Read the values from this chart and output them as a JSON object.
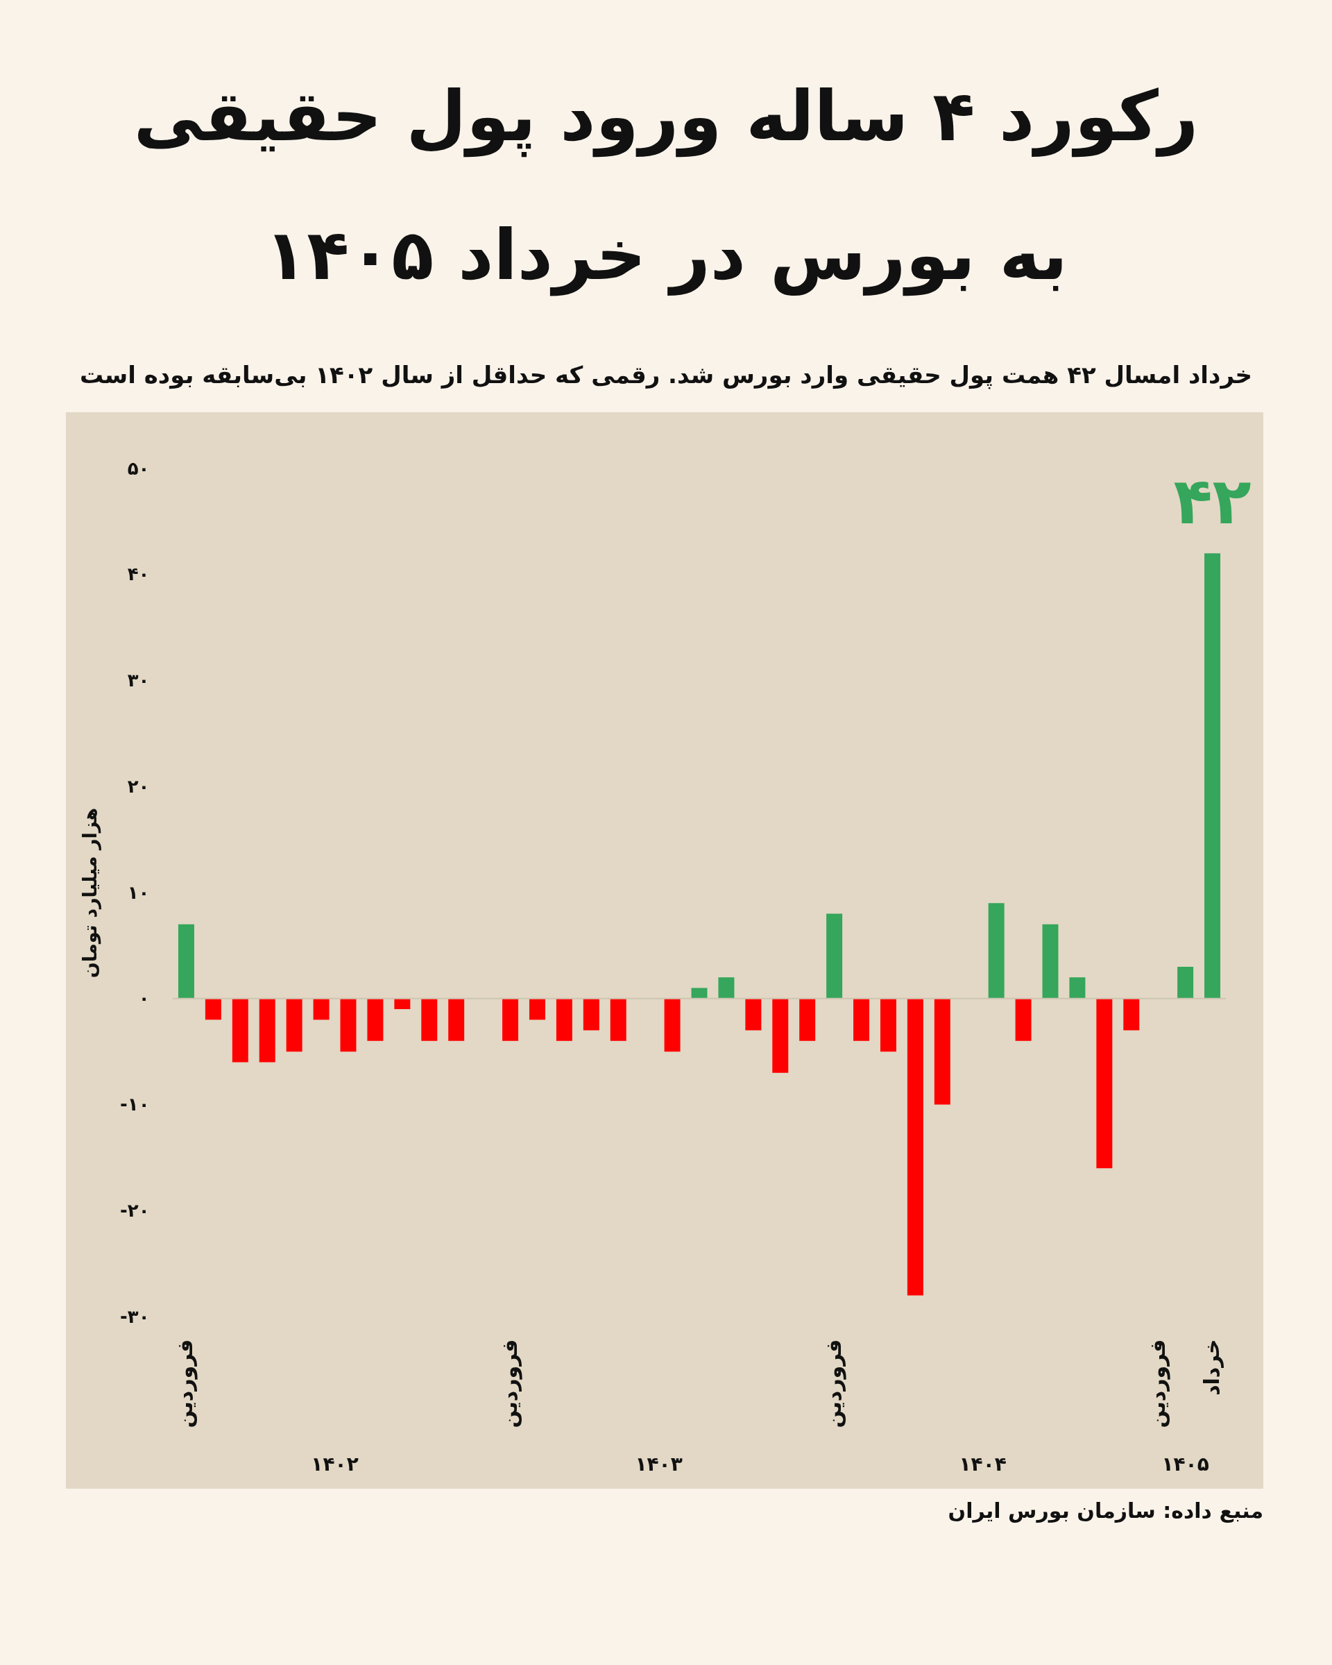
{
  "chart_data": {
    "type": "bar",
    "title": "رکورد ۴ ساله ورود پول حقیقی به بورس در خرداد ۱۴۰۵",
    "subtitle": "خرداد امسال ۴۲ همت پول حقیقی وارد بورس شد. رقمی که حداقل از سال ۱۴۰۲ بی‌سابقه بوده است",
    "ylabel": "هزار میلیارد تومان",
    "categories": [
      "فروردین",
      null,
      null,
      null,
      null,
      null,
      null,
      null,
      null,
      null,
      null,
      null,
      "فروردین",
      null,
      null,
      null,
      null,
      null,
      null,
      null,
      null,
      null,
      null,
      null,
      "فروردین",
      null,
      null,
      null,
      null,
      null,
      null,
      null,
      null,
      null,
      null,
      null,
      "فروردین",
      null,
      "خرداد"
    ],
    "values": [
      7,
      -2,
      -6,
      -6,
      -5,
      -2,
      -5,
      -4,
      -1,
      -4,
      -4,
      null,
      -4,
      -2,
      -4,
      -3,
      -4,
      null,
      -5,
      1,
      2,
      -3,
      -7,
      -4,
      8,
      -4,
      -5,
      -28,
      -10,
      null,
      9,
      -4,
      7,
      2,
      -16,
      -3,
      null,
      3,
      42
    ],
    "colors": [
      "#35a65b",
      "#ff0000",
      "#ff0000",
      "#ff0000",
      "#ff0000",
      "#ff0000",
      "#ff0000",
      "#ff0000",
      "#ff0000",
      "#ff0000",
      "#ff0000",
      null,
      "#ff0000",
      "#ff0000",
      "#ff0000",
      "#ff0000",
      "#ff0000",
      null,
      "#ff0000",
      "#35a65b",
      "#35a65b",
      "#ff0000",
      "#ff0000",
      "#ff0000",
      "#35a65b",
      "#ff0000",
      "#ff0000",
      "#ff0000",
      "#ff0000",
      null,
      "#35a65b",
      "#ff0000",
      "#35a65b",
      "#35a65b",
      "#ff0000",
      "#ff0000",
      null,
      "#35a65b",
      "#35a65b"
    ],
    "value_labels": [
      null,
      null,
      null,
      null,
      null,
      null,
      null,
      null,
      null,
      null,
      null,
      null,
      null,
      null,
      null,
      null,
      null,
      null,
      null,
      null,
      null,
      null,
      null,
      null,
      null,
      null,
      null,
      null,
      null,
      null,
      null,
      null,
      null,
      null,
      null,
      null,
      null,
      null,
      "۴۲"
    ],
    "ylim": [
      -30,
      50
    ],
    "yticks": [
      {
        "value": -30,
        "label": "-۳۰"
      },
      {
        "value": -20,
        "label": "-۲۰"
      },
      {
        "value": -10,
        "label": "-۱۰"
      },
      {
        "value": 0,
        "label": "۰"
      },
      {
        "value": 10,
        "label": "۱۰"
      },
      {
        "value": 20,
        "label": "۲۰"
      },
      {
        "value": 30,
        "label": "۳۰"
      },
      {
        "value": 40,
        "label": "۴۰"
      },
      {
        "value": 50,
        "label": "۵۰"
      }
    ],
    "ref_lines": [
      {
        "axis": "y",
        "value": 0,
        "color": "#cdc4b1"
      }
    ],
    "annotations": [
      "۱۴۰۲",
      "۱۴۰۳",
      "۱۴۰۴",
      "۱۴۰۵",
      "منبع داده: سازمان بورس ایران"
    ]
  }
}
